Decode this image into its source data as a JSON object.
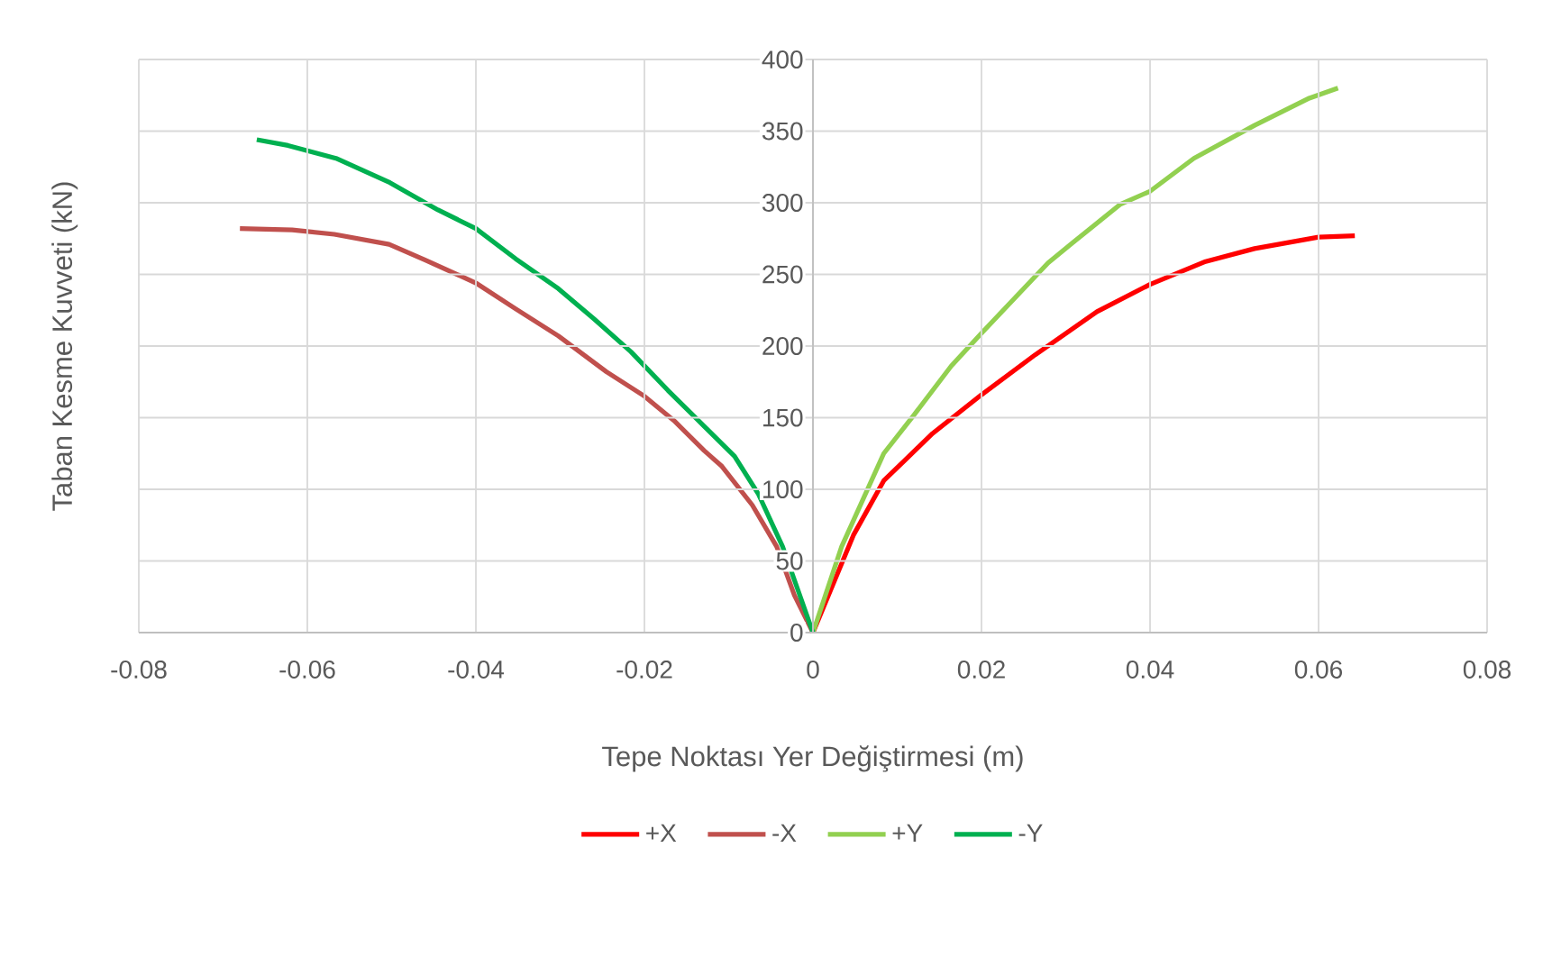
{
  "chart_data": {
    "type": "line",
    "xlabel": "Tepe Noktası Yer Değiştirmesi (m)",
    "ylabel": "Taban Kesme Kuvveti (kN)",
    "xlim": [
      -0.08,
      0.08
    ],
    "xticks": [
      -0.08,
      -0.06,
      -0.04,
      -0.02,
      0,
      0.02,
      0.04,
      0.06,
      0.08
    ],
    "ylim": [
      0,
      400
    ],
    "yticks": [
      0,
      50,
      100,
      150,
      200,
      250,
      300,
      350,
      400
    ],
    "grid": true,
    "legend": "bottom",
    "marker": "none",
    "line_style": "solid",
    "series": [
      {
        "name": "+X",
        "color": "#ff0000",
        "x": [
          0,
          0.0048,
          0.0084,
          0.0142,
          0.02,
          0.0264,
          0.0337,
          0.04,
          0.0466,
          0.0524,
          0.06,
          0.0643
        ],
        "values": [
          0,
          68,
          106,
          139,
          166,
          194,
          224,
          243,
          259,
          268,
          276,
          277
        ]
      },
      {
        "name": "-X",
        "color": "#c0504d",
        "x": [
          -0.068,
          -0.0618,
          -0.0568,
          -0.0503,
          -0.046,
          -0.04,
          -0.0353,
          -0.0302,
          -0.0245,
          -0.02,
          -0.0165,
          -0.0129,
          -0.0108,
          -0.0072,
          -0.0043,
          -0.0022,
          0
        ],
        "values": [
          282,
          281,
          278,
          271,
          260,
          244,
          226,
          207,
          182,
          165,
          148,
          127,
          116,
          89,
          60,
          26,
          0
        ]
      },
      {
        "name": "+Y",
        "color": "#92d050",
        "x": [
          0,
          0.0034,
          0.0084,
          0.012,
          0.0164,
          0.02,
          0.0279,
          0.0308,
          0.0365,
          0.04,
          0.0452,
          0.0524,
          0.0589,
          0.0623
        ],
        "values": [
          0,
          60,
          125,
          152,
          186,
          209,
          258,
          272,
          299,
          308,
          331,
          354,
          373,
          380
        ]
      },
      {
        "name": "-Y",
        "color": "#00b050",
        "x": [
          -0.066,
          -0.0623,
          -0.0566,
          -0.0502,
          -0.0445,
          -0.04,
          -0.0353,
          -0.0302,
          -0.026,
          -0.0216,
          -0.0172,
          -0.0129,
          -0.0093,
          -0.0065,
          -0.0036,
          0
        ],
        "values": [
          344,
          340,
          331,
          314,
          295,
          282,
          261,
          240,
          219,
          196,
          169,
          144,
          123,
          97,
          60,
          0
        ]
      }
    ]
  }
}
